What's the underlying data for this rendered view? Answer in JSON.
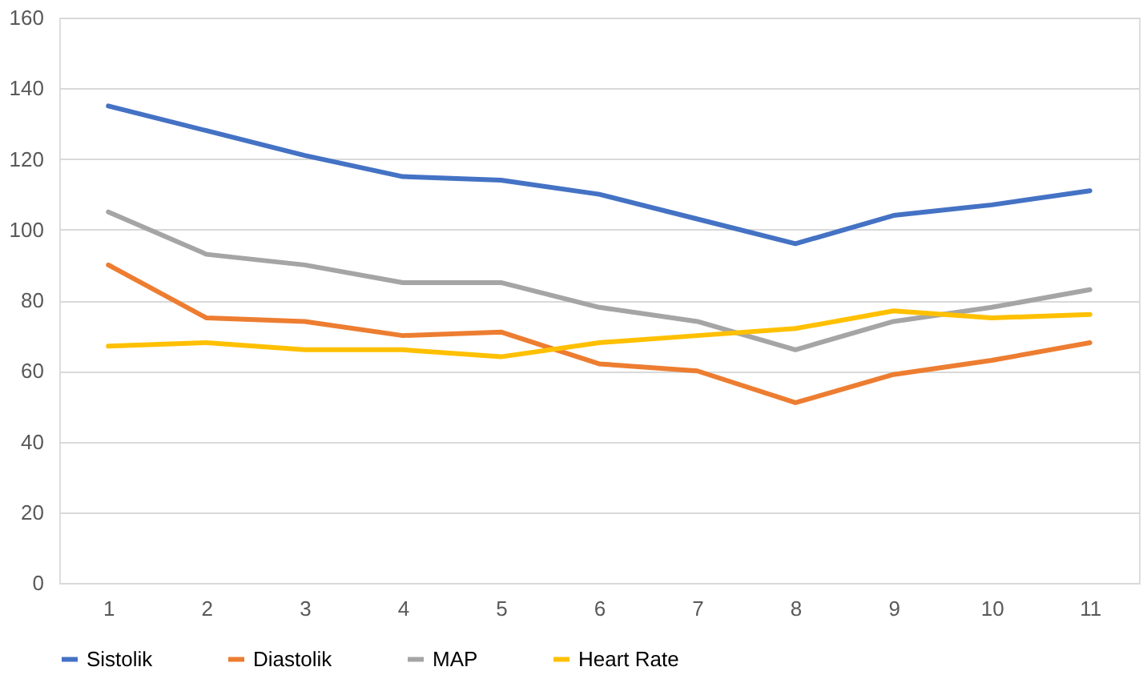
{
  "chart_data": {
    "type": "line",
    "categories": [
      "1",
      "2",
      "3",
      "4",
      "5",
      "6",
      "7",
      "8",
      "9",
      "10",
      "11"
    ],
    "series": [
      {
        "name": "Sistolik",
        "color": "#4472c4",
        "values": [
          135,
          128,
          121,
          115,
          114,
          110,
          103,
          96,
          104,
          107,
          111
        ]
      },
      {
        "name": "Diastolik",
        "color": "#ed7d31",
        "values": [
          90,
          75,
          74,
          70,
          71,
          62,
          60,
          51,
          59,
          63,
          68
        ]
      },
      {
        "name": "MAP",
        "color": "#a5a5a5",
        "values": [
          105,
          93,
          90,
          85,
          85,
          78,
          74,
          66,
          74,
          78,
          83
        ]
      },
      {
        "name": "Heart Rate",
        "color": "#ffc000",
        "values": [
          67,
          68,
          66,
          66,
          64,
          68,
          70,
          72,
          77,
          75,
          76
        ]
      }
    ],
    "ylim": [
      0,
      160
    ],
    "yticks": [
      0,
      20,
      40,
      60,
      80,
      100,
      120,
      140,
      160
    ],
    "grid": "y",
    "legend": "bottom",
    "marker": "none",
    "line_style": "solid"
  }
}
